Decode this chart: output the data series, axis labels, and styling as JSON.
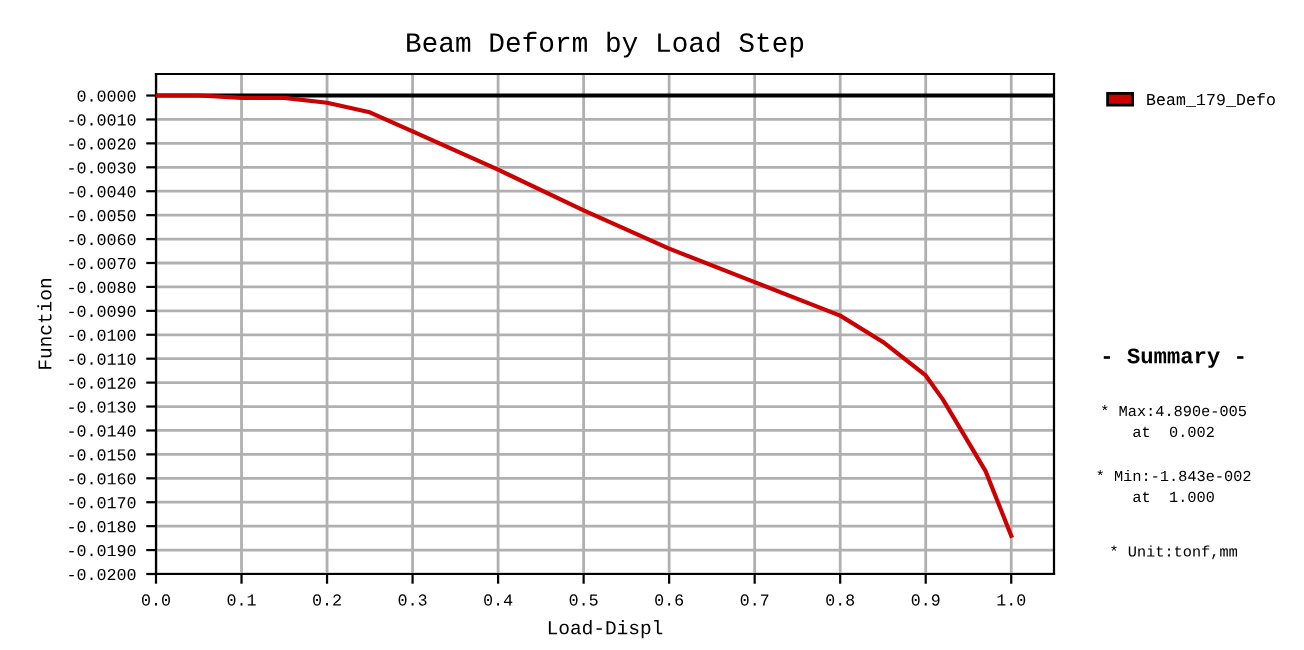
{
  "chart_data": {
    "type": "line",
    "title": "Beam Deform by Load Step",
    "xlabel": "Load-Displ",
    "ylabel": "Function",
    "x": [
      0,
      0.05,
      0.1,
      0.15,
      0.2,
      0.25,
      0.3,
      0.4,
      0.5,
      0.6,
      0.7,
      0.8,
      0.85,
      0.9,
      0.92,
      0.95,
      0.97,
      1.0
    ],
    "series": [
      {
        "name": "Beam_179_Defo",
        "color": "#cc0000",
        "values": [
          0,
          0,
          -0.0001,
          -0.0001,
          -0.0003,
          -0.0007,
          -0.0015,
          -0.0031,
          -0.0048,
          -0.0064,
          -0.0078,
          -0.0092,
          -0.0103,
          -0.0117,
          -0.0127,
          -0.0145,
          -0.0157,
          -0.0184
        ]
      }
    ],
    "xlim": [
      0,
      1.05
    ],
    "ylim": [
      -0.02,
      0.0009
    ],
    "xticks": [
      {
        "value": 0,
        "label": "0.0"
      },
      {
        "value": 0.1,
        "label": "0.1"
      },
      {
        "value": 0.2,
        "label": "0.2"
      },
      {
        "value": 0.3,
        "label": "0.3"
      },
      {
        "value": 0.4,
        "label": "0.4"
      },
      {
        "value": 0.5,
        "label": "0.5"
      },
      {
        "value": 0.6,
        "label": "0.6"
      },
      {
        "value": 0.7,
        "label": "0.7"
      },
      {
        "value": 0.8,
        "label": "0.8"
      },
      {
        "value": 0.9,
        "label": "0.9"
      },
      {
        "value": 1.0,
        "label": "1.0"
      }
    ],
    "yticks": [
      {
        "value": 0,
        "label": "0.0000"
      },
      {
        "value": -0.001,
        "label": "-0.0010"
      },
      {
        "value": -0.002,
        "label": "-0.0020"
      },
      {
        "value": -0.003,
        "label": "-0.0030"
      },
      {
        "value": -0.004,
        "label": "-0.0040"
      },
      {
        "value": -0.005,
        "label": "-0.0050"
      },
      {
        "value": -0.006,
        "label": "-0.0060"
      },
      {
        "value": -0.007,
        "label": "-0.0070"
      },
      {
        "value": -0.008,
        "label": "-0.0080"
      },
      {
        "value": -0.009,
        "label": "-0.0090"
      },
      {
        "value": -0.01,
        "label": "-0.0100"
      },
      {
        "value": -0.011,
        "label": "-0.0110"
      },
      {
        "value": -0.012,
        "label": "-0.0120"
      },
      {
        "value": -0.013,
        "label": "-0.0130"
      },
      {
        "value": -0.014,
        "label": "-0.0140"
      },
      {
        "value": -0.015,
        "label": "-0.0150"
      },
      {
        "value": -0.016,
        "label": "-0.0160"
      },
      {
        "value": -0.017,
        "label": "-0.0170"
      },
      {
        "value": -0.018,
        "label": "-0.0180"
      },
      {
        "value": -0.019,
        "label": "-0.0190"
      },
      {
        "value": -0.02,
        "label": "-0.0200"
      }
    ],
    "ref_lines": [
      {
        "axis": "y",
        "value": 0,
        "color": "#000000"
      }
    ],
    "grid": true,
    "legend": "top right",
    "marker": "none",
    "line_style": "solid",
    "annotations": [
      "- Summary -",
      "* Max:4.890e-005\nat  0.002",
      "* Min:-1.843e-002\nat  1.000",
      "* Unit:tonf,mm"
    ]
  }
}
